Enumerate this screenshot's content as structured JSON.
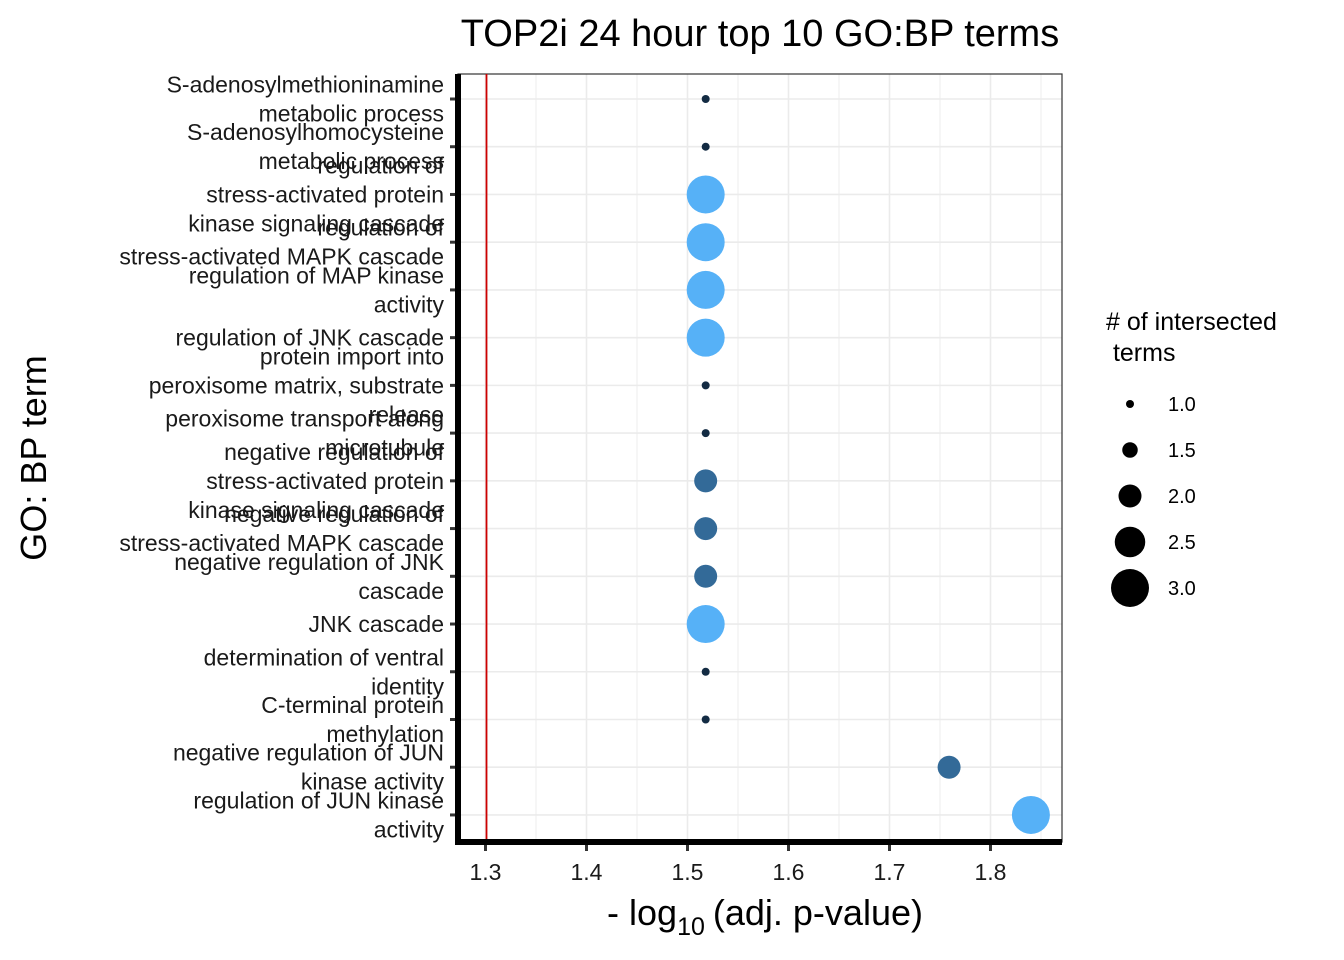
{
  "chart_data": {
    "type": "scatter",
    "title": "TOP2i 24 hour top 10 GO:BP terms",
    "xlabel": "- log10 (adj. p-value)",
    "xlabel_parts": {
      "prefix": "- log",
      "subscript": "10",
      "suffix": "(adj. p-value)"
    },
    "ylabel": "GO: BP term",
    "xlim": [
      1.27,
      1.855
    ],
    "xticks": [
      "1.3",
      "1.4",
      "1.5",
      "1.6",
      "1.7",
      "1.8"
    ],
    "reference_line": {
      "x": 1.301,
      "color": "#cc0000"
    },
    "grid": true,
    "colors": {
      "light": "#56b1f7",
      "dark": "#336a98",
      "navy": "#132b43"
    },
    "points": [
      {
        "label": [
          "S-adenosylmethioninamine",
          "metabolic process"
        ],
        "x": 1.518,
        "size": 1,
        "color": "#132b43"
      },
      {
        "label": [
          "S-adenosylhomocysteine",
          "metabolic process"
        ],
        "x": 1.518,
        "size": 1,
        "color": "#132b43"
      },
      {
        "label": [
          "regulation of",
          "stress-activated protein",
          "kinase signaling cascade"
        ],
        "x": 1.518,
        "size": 3,
        "color": "#56b1f7"
      },
      {
        "label": [
          "regulation of",
          "stress-activated MAPK cascade"
        ],
        "x": 1.518,
        "size": 3,
        "color": "#56b1f7"
      },
      {
        "label": [
          "regulation of MAP kinase",
          "activity"
        ],
        "x": 1.518,
        "size": 3,
        "color": "#56b1f7"
      },
      {
        "label": [
          "regulation of JNK cascade"
        ],
        "x": 1.518,
        "size": 3,
        "color": "#56b1f7"
      },
      {
        "label": [
          "protein import into",
          "peroxisome matrix, substrate",
          "release"
        ],
        "x": 1.518,
        "size": 1,
        "color": "#132b43"
      },
      {
        "label": [
          "peroxisome transport along",
          "microtubule"
        ],
        "x": 1.518,
        "size": 1,
        "color": "#132b43"
      },
      {
        "label": [
          "negative regulation of",
          "stress-activated protein",
          "kinase signaling cascade"
        ],
        "x": 1.518,
        "size": 2,
        "color": "#336a98"
      },
      {
        "label": [
          "negative regulation of",
          "stress-activated MAPK cascade"
        ],
        "x": 1.518,
        "size": 2,
        "color": "#336a98"
      },
      {
        "label": [
          "negative regulation of JNK",
          "cascade"
        ],
        "x": 1.518,
        "size": 2,
        "color": "#336a98"
      },
      {
        "label": [
          "JNK cascade"
        ],
        "x": 1.518,
        "size": 3,
        "color": "#56b1f7"
      },
      {
        "label": [
          "determination of ventral",
          "identity"
        ],
        "x": 1.518,
        "size": 1,
        "color": "#132b43"
      },
      {
        "label": [
          "C-terminal protein",
          "methylation"
        ],
        "x": 1.518,
        "size": 1,
        "color": "#132b43"
      },
      {
        "label": [
          "negative regulation of JUN",
          "kinase activity"
        ],
        "x": 1.759,
        "size": 2,
        "color": "#336a98"
      },
      {
        "label": [
          "regulation of JUN kinase",
          "activity"
        ],
        "x": 1.84,
        "size": 3,
        "color": "#56b1f7"
      }
    ],
    "legend": {
      "title": [
        "# of intersected",
        " terms"
      ],
      "placement": "right",
      "entries": [
        {
          "label": "1.0",
          "value": 1.0
        },
        {
          "label": "1.5",
          "value": 1.5
        },
        {
          "label": "2.0",
          "value": 2.0
        },
        {
          "label": "2.5",
          "value": 2.5
        },
        {
          "label": "3.0",
          "value": 3.0
        }
      ]
    }
  }
}
